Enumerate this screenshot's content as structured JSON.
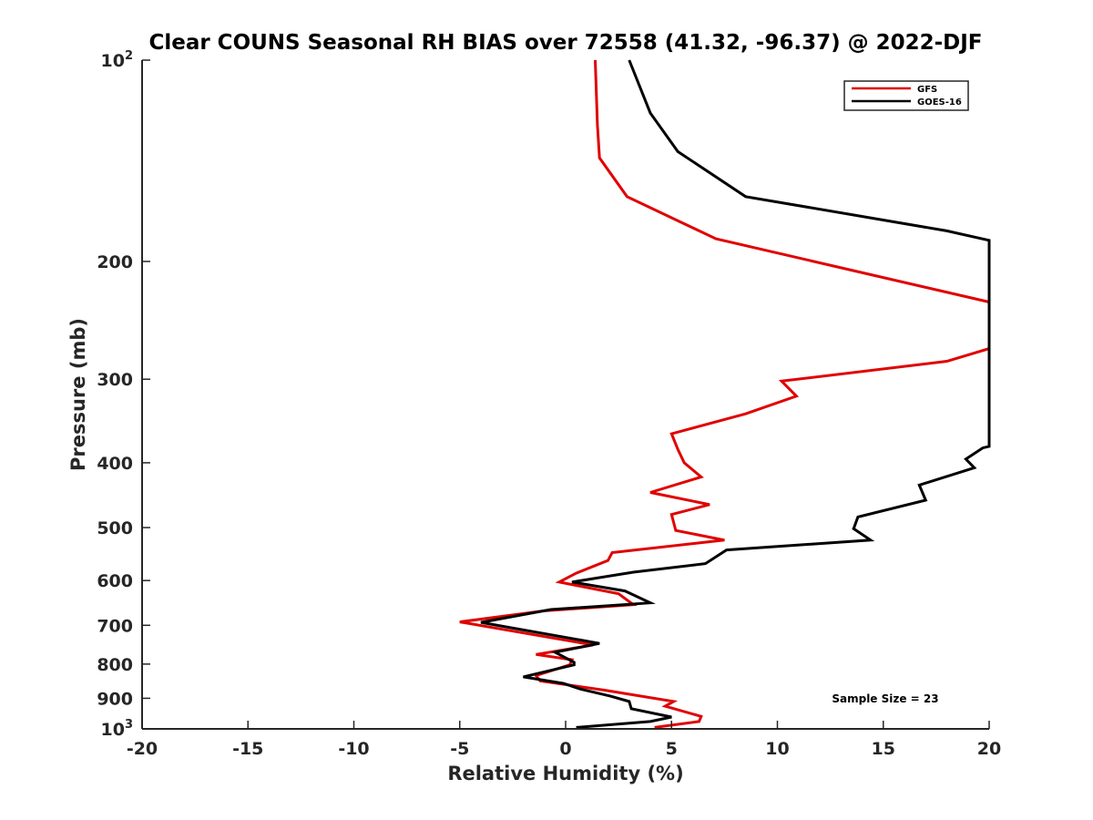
{
  "chart_data": {
    "type": "line",
    "title": "Clear COUNS Seasonal RH BIAS over 72558 (41.32, -96.37) @ 2022-DJF",
    "xlabel": "Relative Humidity (%)",
    "ylabel": "Pressure (mb)",
    "xlim": [
      -20,
      20
    ],
    "ylim": [
      100,
      1000
    ],
    "y_scale": "log",
    "y_reversed": true,
    "grid": false,
    "x_ticks": [
      -20,
      -15,
      -10,
      -5,
      0,
      5,
      10,
      15,
      20
    ],
    "x_tick_labels": [
      "-20",
      "-15",
      "-10",
      "-5",
      "0",
      "5",
      "10",
      "15",
      "20"
    ],
    "y_ticks": [
      200,
      300,
      400,
      500,
      600,
      700,
      800,
      900
    ],
    "y_tick_labels": [
      "200",
      "300",
      "400",
      "500",
      "600",
      "700",
      "800",
      "900"
    ],
    "y_end_ticks": [
      {
        "value": 100,
        "base": "10",
        "exp": "2"
      },
      {
        "value": 1000,
        "base": "10",
        "exp": "3"
      }
    ],
    "legend_position": "top-right",
    "annotation": "Sample Size = 23",
    "series": [
      {
        "name": "GFS",
        "color": "#e00000",
        "points": [
          [
            1.4,
            100
          ],
          [
            1.5,
            125
          ],
          [
            1.6,
            140
          ],
          [
            2.9,
            160
          ],
          [
            7.1,
            185
          ],
          [
            20.0,
            230
          ],
          [
            20.0,
            270
          ],
          [
            18.0,
            282
          ],
          [
            10.2,
            302
          ],
          [
            10.9,
            318
          ],
          [
            8.5,
            338
          ],
          [
            5.0,
            362
          ],
          [
            5.3,
            382
          ],
          [
            5.6,
            400
          ],
          [
            6.4,
            420
          ],
          [
            4.0,
            443
          ],
          [
            6.8,
            462
          ],
          [
            5.0,
            478
          ],
          [
            5.2,
            505
          ],
          [
            7.5,
            522
          ],
          [
            2.2,
            545
          ],
          [
            2.0,
            560
          ],
          [
            0.5,
            585
          ],
          [
            -0.3,
            603
          ],
          [
            2.5,
            628
          ],
          [
            3.2,
            652
          ],
          [
            -1.0,
            666
          ],
          [
            -5.0,
            692
          ],
          [
            1.3,
            749
          ],
          [
            -1.4,
            774
          ],
          [
            0.3,
            788
          ],
          [
            0.2,
            802
          ],
          [
            -1.4,
            832
          ],
          [
            -1.2,
            848
          ],
          [
            1.8,
            875
          ],
          [
            5.1,
            910
          ],
          [
            4.7,
            925
          ],
          [
            6.4,
            958
          ],
          [
            6.3,
            975
          ],
          [
            4.2,
            995
          ]
        ]
      },
      {
        "name": "GOES-16",
        "color": "#000000",
        "points": [
          [
            3.0,
            100
          ],
          [
            4.0,
            120
          ],
          [
            5.3,
            137
          ],
          [
            8.5,
            160
          ],
          [
            18.0,
            180
          ],
          [
            20.0,
            186
          ],
          [
            20.0,
            378
          ],
          [
            19.7,
            380
          ],
          [
            18.9,
            395
          ],
          [
            19.3,
            407
          ],
          [
            16.7,
            432
          ],
          [
            17.0,
            455
          ],
          [
            13.8,
            482
          ],
          [
            13.6,
            502
          ],
          [
            14.4,
            522
          ],
          [
            7.6,
            540
          ],
          [
            6.6,
            566
          ],
          [
            3.2,
            583
          ],
          [
            0.3,
            603
          ],
          [
            2.8,
            622
          ],
          [
            4.0,
            648
          ],
          [
            -0.7,
            663
          ],
          [
            -4.0,
            693
          ],
          [
            1.6,
            745
          ],
          [
            -0.5,
            768
          ],
          [
            0.4,
            795
          ],
          [
            0.4,
            802
          ],
          [
            -2.0,
            836
          ],
          [
            -0.1,
            855
          ],
          [
            0.7,
            872
          ],
          [
            2.1,
            893
          ],
          [
            3.0,
            910
          ],
          [
            3.1,
            933
          ],
          [
            5.0,
            960
          ],
          [
            4.0,
            975
          ],
          [
            0.5,
            995
          ]
        ]
      }
    ]
  }
}
